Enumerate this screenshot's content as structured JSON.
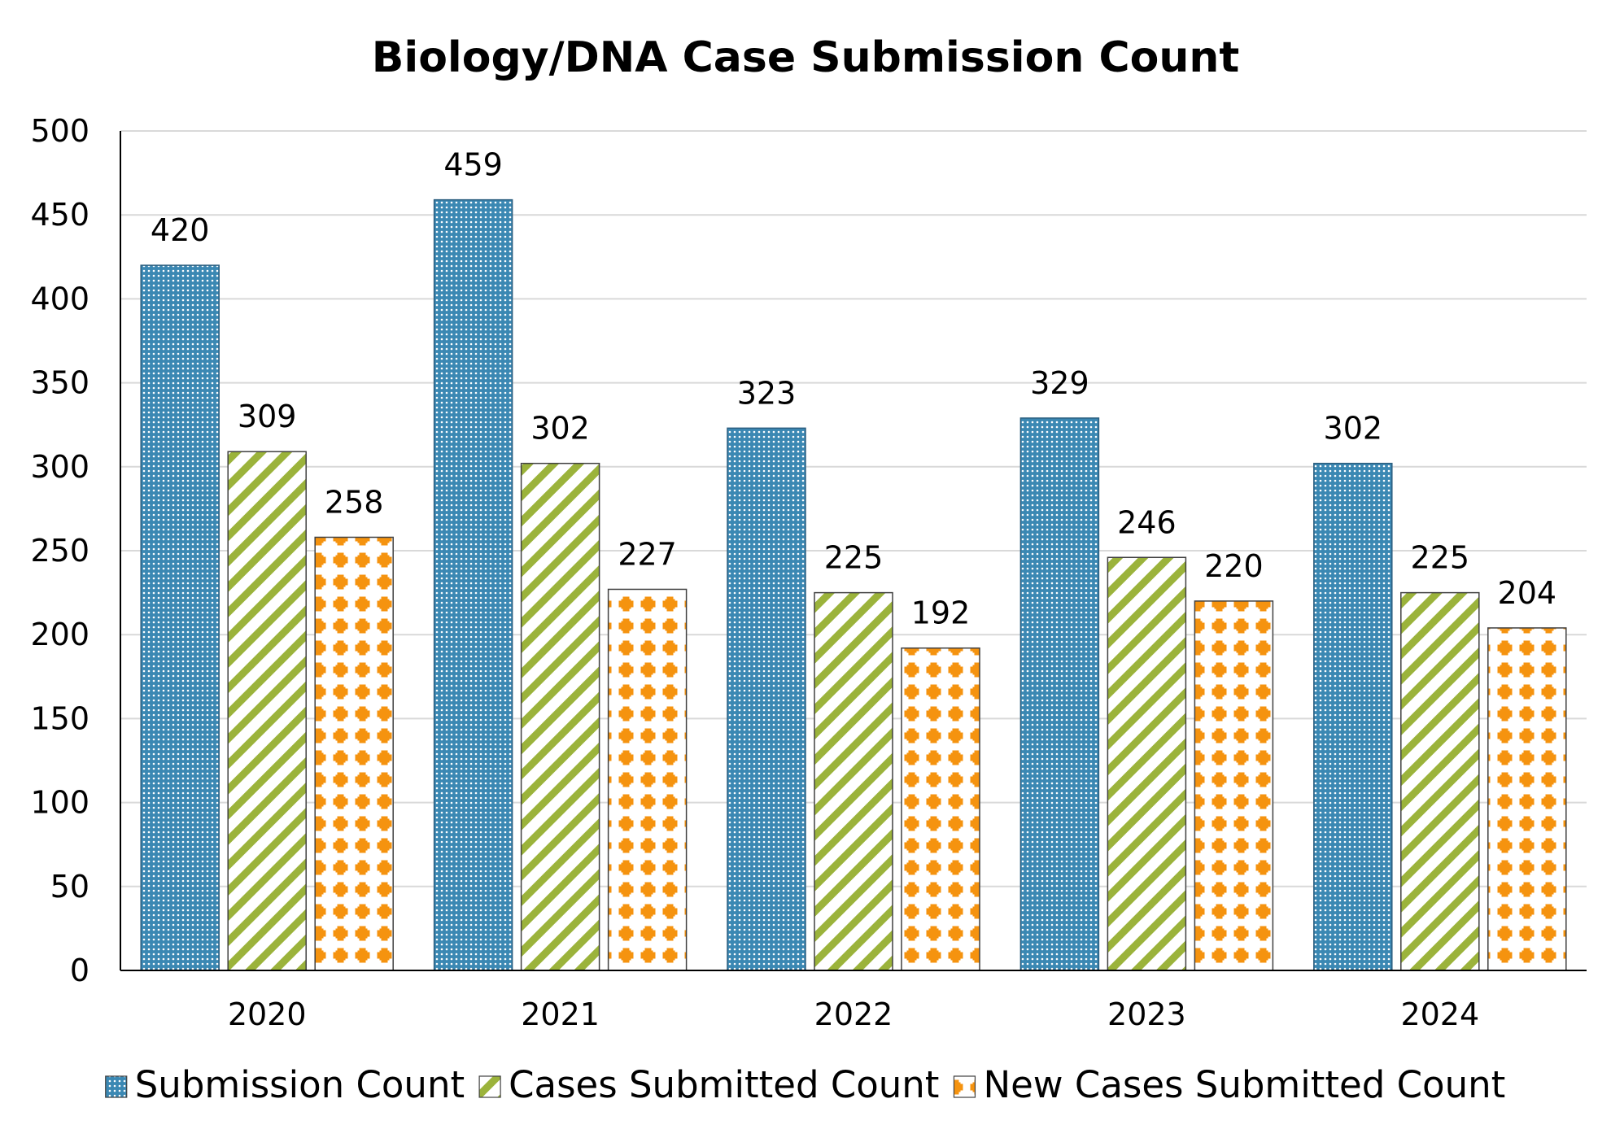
{
  "chart_data": {
    "type": "bar",
    "title": "Biology/DNA Case Submission Count",
    "xlabel": "",
    "ylabel": "",
    "categories": [
      "2020",
      "2021",
      "2022",
      "2023",
      "2024"
    ],
    "ylim": [
      0,
      500
    ],
    "yticks": [
      "0",
      "50",
      "100",
      "150",
      "200",
      "250",
      "300",
      "350",
      "400",
      "450",
      "500"
    ],
    "grid": true,
    "legend_position": "bottom",
    "data_labels": true,
    "series": [
      {
        "name": "Submission Count",
        "values": [
          420,
          459,
          323,
          329,
          302
        ],
        "color": "#3b88b3",
        "pattern": "dots"
      },
      {
        "name": "Cases Submitted Count",
        "values": [
          309,
          302,
          225,
          246,
          225
        ],
        "color": "#9bb33b",
        "pattern": "diagonal-stripes"
      },
      {
        "name": "New Cases Submitted Count",
        "values": [
          258,
          227,
          192,
          220,
          204
        ],
        "color": "#f5930f",
        "pattern": "plus-diamonds"
      }
    ]
  }
}
